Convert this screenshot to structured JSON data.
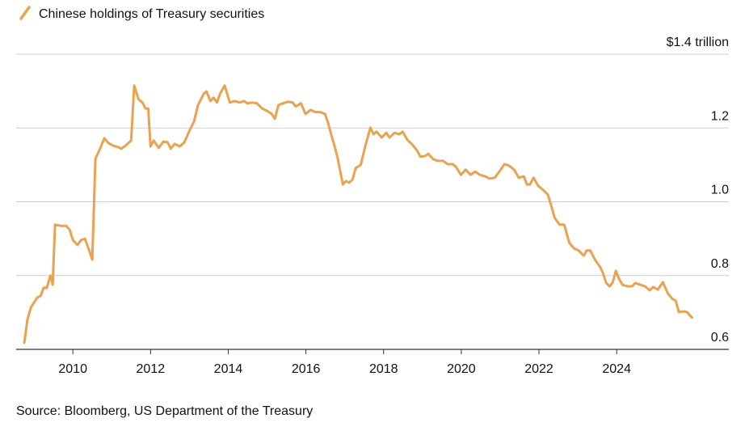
{
  "chart_data": {
    "type": "line",
    "source": "Source: Bloomberg, US Department of the Treasury",
    "xlim": [
      2008.54,
      2026.43
    ],
    "xticks": [
      2010,
      2012,
      2014,
      2016,
      2018,
      2020,
      2022,
      2024
    ],
    "ylim": [
      0.6,
      1.4
    ],
    "yticks": [
      0.6,
      0.8,
      {
        "value": 1.0,
        "label": "1.0"
      },
      1.2,
      {
        "value": 1.4,
        "label": "$1.4 trillion"
      }
    ],
    "grid": true,
    "x": [
      2008.75,
      2008.83,
      2008.92,
      2009.08,
      2009.17,
      2009.25,
      2009.33,
      2009.42,
      2009.48,
      2009.54,
      2009.69,
      2009.83,
      2009.92,
      2010.0,
      2010.12,
      2010.21,
      2010.31,
      2010.42,
      2010.5,
      2010.58,
      2010.71,
      2010.81,
      2010.92,
      2011.04,
      2011.17,
      2011.25,
      2011.35,
      2011.5,
      2011.58,
      2011.69,
      2011.79,
      2011.87,
      2011.94,
      2012.0,
      2012.08,
      2012.21,
      2012.33,
      2012.44,
      2012.52,
      2012.62,
      2012.75,
      2012.87,
      2013.0,
      2013.12,
      2013.22,
      2013.37,
      2013.44,
      2013.54,
      2013.62,
      2013.71,
      2013.79,
      2013.91,
      2014.04,
      2014.17,
      2014.29,
      2014.41,
      2014.49,
      2014.62,
      2014.74,
      2014.87,
      2014.99,
      2015.12,
      2015.2,
      2015.29,
      2015.41,
      2015.54,
      2015.66,
      2015.74,
      2015.87,
      2015.99,
      2016.12,
      2016.24,
      2016.37,
      2016.49,
      2016.57,
      2016.66,
      2016.74,
      2016.82,
      2016.95,
      2017.03,
      2017.11,
      2017.2,
      2017.28,
      2017.41,
      2017.53,
      2017.66,
      2017.74,
      2017.82,
      2017.95,
      2018.07,
      2018.15,
      2018.28,
      2018.41,
      2018.49,
      2018.61,
      2018.74,
      2018.86,
      2018.95,
      2019.07,
      2019.15,
      2019.28,
      2019.4,
      2019.53,
      2019.65,
      2019.78,
      2019.86,
      2019.99,
      2020.11,
      2020.24,
      2020.36,
      2020.48,
      2020.61,
      2020.73,
      2020.86,
      2020.98,
      2021.11,
      2021.23,
      2021.36,
      2021.48,
      2021.61,
      2021.69,
      2021.77,
      2021.86,
      2021.98,
      2022.11,
      2022.23,
      2022.32,
      2022.4,
      2022.53,
      2022.65,
      2022.78,
      2022.9,
      2023.02,
      2023.15,
      2023.23,
      2023.32,
      2023.44,
      2023.57,
      2023.65,
      2023.73,
      2023.82,
      2023.9,
      2023.98,
      2024.06,
      2024.15,
      2024.27,
      2024.4,
      2024.48,
      2024.61,
      2024.73,
      2024.85,
      2024.94,
      2025.06,
      2025.19,
      2025.31,
      2025.44,
      2025.52,
      2025.6,
      2025.73,
      2025.81,
      2025.94
    ],
    "series": [
      {
        "name": "Chinese holdings of Treasury securities",
        "color": "#eba24e",
        "values": [
          0.618,
          0.68,
          0.714,
          0.74,
          0.745,
          0.767,
          0.767,
          0.8,
          0.775,
          0.938,
          0.935,
          0.935,
          0.924,
          0.896,
          0.883,
          0.896,
          0.9,
          0.868,
          0.843,
          1.117,
          1.146,
          1.172,
          1.159,
          1.152,
          1.148,
          1.144,
          1.152,
          1.166,
          1.315,
          1.278,
          1.269,
          1.253,
          1.253,
          1.15,
          1.166,
          1.146,
          1.163,
          1.161,
          1.144,
          1.157,
          1.15,
          1.161,
          1.192,
          1.218,
          1.262,
          1.293,
          1.299,
          1.273,
          1.282,
          1.269,
          1.293,
          1.315,
          1.269,
          1.273,
          1.269,
          1.273,
          1.267,
          1.269,
          1.267,
          1.253,
          1.247,
          1.238,
          1.225,
          1.262,
          1.267,
          1.271,
          1.269,
          1.258,
          1.267,
          1.238,
          1.249,
          1.243,
          1.243,
          1.238,
          1.214,
          1.179,
          1.15,
          1.117,
          1.047,
          1.056,
          1.052,
          1.06,
          1.091,
          1.1,
          1.152,
          1.201,
          1.183,
          1.19,
          1.174,
          1.187,
          1.174,
          1.187,
          1.183,
          1.19,
          1.168,
          1.155,
          1.139,
          1.122,
          1.124,
          1.13,
          1.115,
          1.111,
          1.111,
          1.102,
          1.102,
          1.095,
          1.073,
          1.087,
          1.073,
          1.082,
          1.073,
          1.069,
          1.063,
          1.065,
          1.082,
          1.102,
          1.098,
          1.087,
          1.065,
          1.069,
          1.047,
          1.047,
          1.065,
          1.043,
          1.032,
          1.019,
          0.988,
          0.957,
          0.938,
          0.938,
          0.889,
          0.874,
          0.868,
          0.854,
          0.868,
          0.868,
          0.843,
          0.824,
          0.806,
          0.78,
          0.771,
          0.782,
          0.813,
          0.791,
          0.775,
          0.771,
          0.771,
          0.78,
          0.775,
          0.771,
          0.76,
          0.769,
          0.762,
          0.782,
          0.753,
          0.736,
          0.732,
          0.701,
          0.703,
          0.701,
          0.686
        ]
      }
    ]
  }
}
